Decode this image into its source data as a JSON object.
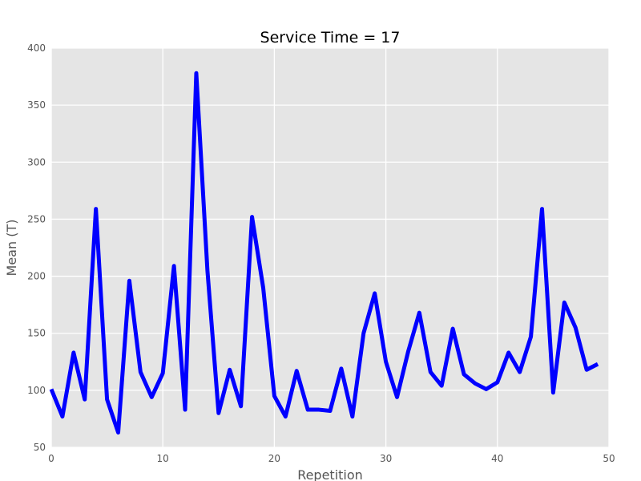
{
  "chart_data": {
    "type": "line",
    "title": "Service Time = 17",
    "xlabel": "Repetition",
    "ylabel": "Mean (T)",
    "xlim": [
      0,
      50
    ],
    "ylim": [
      50,
      400
    ],
    "xticks": [
      0,
      10,
      20,
      30,
      40,
      50
    ],
    "yticks": [
      50,
      100,
      150,
      200,
      250,
      300,
      350,
      400
    ],
    "grid": true,
    "series": [
      {
        "color": "#0000ff",
        "x": [
          0,
          1,
          2,
          3,
          4,
          5,
          6,
          7,
          8,
          9,
          10,
          11,
          12,
          13,
          14,
          15,
          16,
          17,
          18,
          19,
          20,
          21,
          22,
          23,
          24,
          25,
          26,
          27,
          28,
          29,
          30,
          31,
          32,
          33,
          34,
          35,
          36,
          37,
          38,
          39,
          40,
          41,
          42,
          43,
          44,
          45,
          46,
          47,
          48,
          49
        ],
        "values": [
          101,
          77,
          133,
          92,
          259,
          92,
          63,
          196,
          116,
          94,
          115,
          209,
          83,
          378,
          205,
          80,
          118,
          86,
          252,
          190,
          95,
          77,
          117,
          83,
          83,
          82,
          119,
          77,
          150,
          185,
          125,
          94,
          134,
          168,
          116,
          104,
          154,
          114,
          106,
          101,
          107,
          133,
          116,
          147,
          259,
          98,
          177,
          155,
          118,
          123
        ]
      }
    ]
  }
}
